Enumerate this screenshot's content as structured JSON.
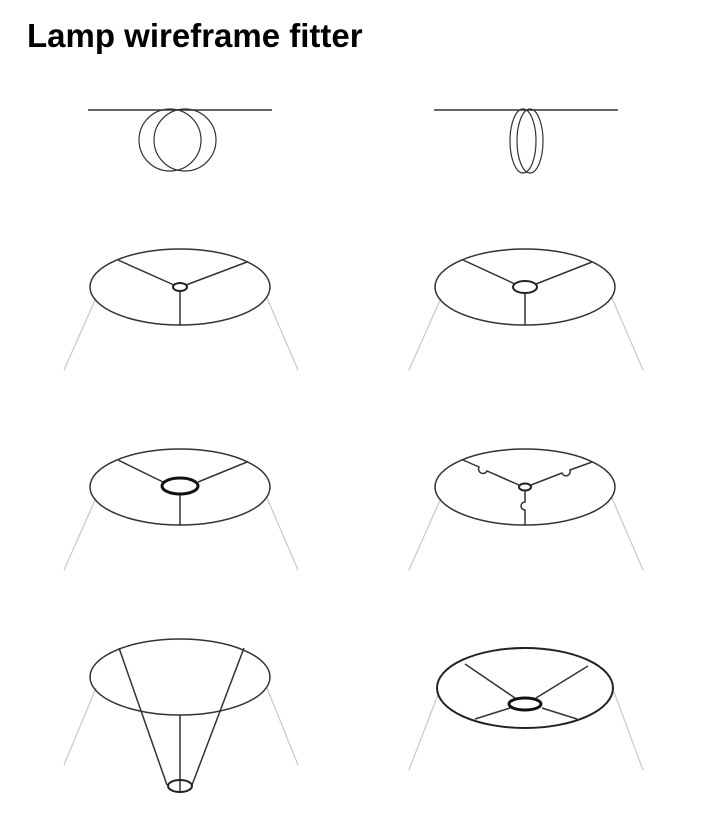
{
  "page": {
    "title": "Lamp wireframe fitter"
  },
  "fitters": [
    {
      "id": "clip-on-bulb",
      "icon": "clip-on-bulb-fitter"
    },
    {
      "id": "clip-on-narrow",
      "icon": "clip-on-narrow-fitter"
    },
    {
      "id": "small-ring-spider",
      "icon": "spider-fitter-small-ring"
    },
    {
      "id": "medium-ring-spider",
      "icon": "spider-fitter-medium-ring"
    },
    {
      "id": "large-ring-spider",
      "icon": "spider-fitter-large-ring"
    },
    {
      "id": "notched-spider",
      "icon": "notched-spider-fitter"
    },
    {
      "id": "dropped-spider",
      "icon": "dropped-spider-fitter"
    },
    {
      "id": "bottom-ring-uno",
      "icon": "bottom-ring-fitter"
    }
  ]
}
